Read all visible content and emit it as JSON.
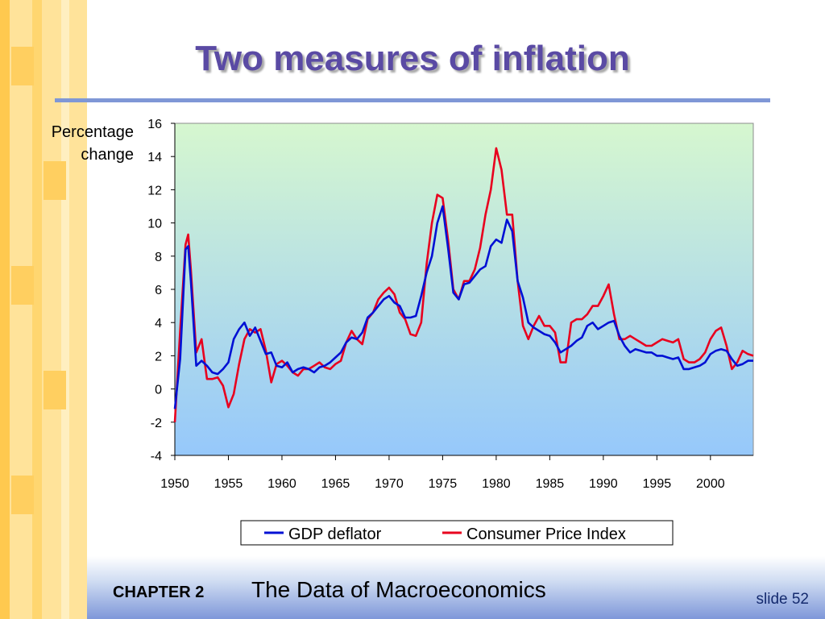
{
  "slide": {
    "title": "Two measures of inflation",
    "y_axis_label_line1": "Percentage",
    "y_axis_label_line2": "change",
    "footer_chapter": "CHAPTER 2",
    "footer_title": "The Data of Macroeconomics",
    "slide_number": "slide 52"
  },
  "colors": {
    "title": "#5a4aa4",
    "title_rule": "#7f97d6",
    "plot_gradient_top": "#d6f7cf",
    "plot_gradient_bottom": "#96c8fb",
    "gdp_deflator": "#0010d4",
    "cpi": "#e8001e"
  },
  "chart_data": {
    "type": "line",
    "title": "",
    "xlabel": "",
    "ylabel": "Percentage change",
    "xlim": [
      1950,
      2004
    ],
    "ylim": [
      -4,
      16
    ],
    "y_ticks": [
      -4,
      -2,
      0,
      2,
      4,
      6,
      8,
      10,
      12,
      14,
      16
    ],
    "x_ticks": [
      1950,
      1955,
      1960,
      1965,
      1970,
      1975,
      1980,
      1985,
      1990,
      1995,
      2000
    ],
    "grid": false,
    "legend_position": "bottom",
    "series": [
      {
        "name": "GDP deflator",
        "color": "#0010d4",
        "x": [
          1950,
          1950.5,
          1951,
          1951.25,
          1951.5,
          1952,
          1952.5,
          1953,
          1953.5,
          1954,
          1954.5,
          1955,
          1955.5,
          1956,
          1956.5,
          1957,
          1957.5,
          1958,
          1958.5,
          1959,
          1959.5,
          1960,
          1960.5,
          1961,
          1961.5,
          1962,
          1962.5,
          1963,
          1963.5,
          1964,
          1964.5,
          1965,
          1965.5,
          1966,
          1966.5,
          1967,
          1967.5,
          1968,
          1968.5,
          1969,
          1969.5,
          1970,
          1970.5,
          1971,
          1971.5,
          1972,
          1972.5,
          1973,
          1973.5,
          1974,
          1974.5,
          1975,
          1975.5,
          1976,
          1976.5,
          1977,
          1977.5,
          1978,
          1978.5,
          1979,
          1979.5,
          1980,
          1980.5,
          1981,
          1981.5,
          1982,
          1982.5,
          1983,
          1983.5,
          1984,
          1984.5,
          1985,
          1985.5,
          1986,
          1986.5,
          1987,
          1987.5,
          1988,
          1988.5,
          1989,
          1989.5,
          1990,
          1990.5,
          1991,
          1991.5,
          1992,
          1992.5,
          1993,
          1993.5,
          1994,
          1994.5,
          1995,
          1995.5,
          1996,
          1996.5,
          1997,
          1997.5,
          1998,
          1998.5,
          1999,
          1999.5,
          2000,
          2000.5,
          2001,
          2001.5,
          2002,
          2002.5,
          2003,
          2003.5,
          2004
        ],
        "values": [
          -1.2,
          1.8,
          8.4,
          8.6,
          6.5,
          1.4,
          1.7,
          1.4,
          1.0,
          0.9,
          1.2,
          1.6,
          3.0,
          3.6,
          4.0,
          3.2,
          3.7,
          2.9,
          2.1,
          2.2,
          1.4,
          1.3,
          1.6,
          1.0,
          1.2,
          1.3,
          1.2,
          1.0,
          1.3,
          1.4,
          1.6,
          1.9,
          2.2,
          2.8,
          3.1,
          3.0,
          3.4,
          4.3,
          4.6,
          5.0,
          5.4,
          5.6,
          5.2,
          5.0,
          4.3,
          4.3,
          4.4,
          5.6,
          7.0,
          8.0,
          10.0,
          11.0,
          8.5,
          5.8,
          5.4,
          6.3,
          6.4,
          6.8,
          7.2,
          7.4,
          8.6,
          9.0,
          8.8,
          10.2,
          9.5,
          6.5,
          5.5,
          4.0,
          3.7,
          3.5,
          3.3,
          3.2,
          2.8,
          2.2,
          2.4,
          2.6,
          2.9,
          3.1,
          3.8,
          4.0,
          3.6,
          3.8,
          4.0,
          4.1,
          3.2,
          2.6,
          2.2,
          2.4,
          2.3,
          2.2,
          2.2,
          2.0,
          2.0,
          1.9,
          1.8,
          1.9,
          1.2,
          1.2,
          1.3,
          1.4,
          1.6,
          2.1,
          2.3,
          2.4,
          2.3,
          1.8,
          1.4,
          1.5,
          1.7,
          1.7
        ]
      },
      {
        "name": "Consumer Price Index",
        "color": "#e8001e",
        "x": [
          1950,
          1950.5,
          1951,
          1951.25,
          1951.5,
          1952,
          1952.5,
          1953,
          1953.5,
          1954,
          1954.5,
          1955,
          1955.5,
          1956,
          1956.5,
          1957,
          1957.5,
          1958,
          1958.5,
          1959,
          1959.5,
          1960,
          1960.5,
          1961,
          1961.5,
          1962,
          1962.5,
          1963,
          1963.5,
          1964,
          1964.5,
          1965,
          1965.5,
          1966,
          1966.5,
          1967,
          1967.5,
          1968,
          1968.5,
          1969,
          1969.5,
          1970,
          1970.5,
          1971,
          1971.5,
          1972,
          1972.5,
          1973,
          1973.5,
          1974,
          1974.5,
          1975,
          1975.5,
          1976,
          1976.5,
          1977,
          1977.5,
          1978,
          1978.5,
          1979,
          1979.5,
          1980,
          1980.5,
          1981,
          1981.5,
          1982,
          1982.5,
          1983,
          1983.5,
          1984,
          1984.5,
          1985,
          1985.5,
          1986,
          1986.5,
          1987,
          1987.5,
          1988,
          1988.5,
          1989,
          1989.5,
          1990,
          1990.5,
          1991,
          1991.5,
          1992,
          1992.5,
          1993,
          1993.5,
          1994,
          1994.5,
          1995,
          1995.5,
          1996,
          1996.5,
          1997,
          1997.5,
          1998,
          1998.5,
          1999,
          1999.5,
          2000,
          2000.5,
          2001,
          2001.5,
          2002,
          2002.5,
          2003,
          2003.5,
          2004
        ],
        "values": [
          -2.0,
          3.5,
          8.7,
          9.3,
          7.2,
          2.2,
          3.0,
          0.6,
          0.6,
          0.7,
          0.2,
          -1.1,
          -0.3,
          1.5,
          3.0,
          3.6,
          3.4,
          3.6,
          2.3,
          0.4,
          1.5,
          1.7,
          1.4,
          1.0,
          0.8,
          1.2,
          1.2,
          1.4,
          1.6,
          1.3,
          1.2,
          1.5,
          1.7,
          2.8,
          3.5,
          3.0,
          2.7,
          4.2,
          4.6,
          5.4,
          5.8,
          6.1,
          5.7,
          4.6,
          4.2,
          3.3,
          3.2,
          4.0,
          7.5,
          10.0,
          11.7,
          11.5,
          9.0,
          6.0,
          5.4,
          6.5,
          6.5,
          7.2,
          8.5,
          10.5,
          12.0,
          14.5,
          13.2,
          10.5,
          10.5,
          6.5,
          3.8,
          3.0,
          3.8,
          4.4,
          3.8,
          3.8,
          3.4,
          1.6,
          1.6,
          4.0,
          4.2,
          4.2,
          4.5,
          5.0,
          5.0,
          5.6,
          6.3,
          4.5,
          3.0,
          3.0,
          3.2,
          3.0,
          2.8,
          2.6,
          2.6,
          2.8,
          3.0,
          2.9,
          2.8,
          3.0,
          1.8,
          1.6,
          1.6,
          1.8,
          2.2,
          3.0,
          3.5,
          3.7,
          2.6,
          1.2,
          1.6,
          2.3,
          2.1,
          2.0
        ]
      }
    ]
  }
}
